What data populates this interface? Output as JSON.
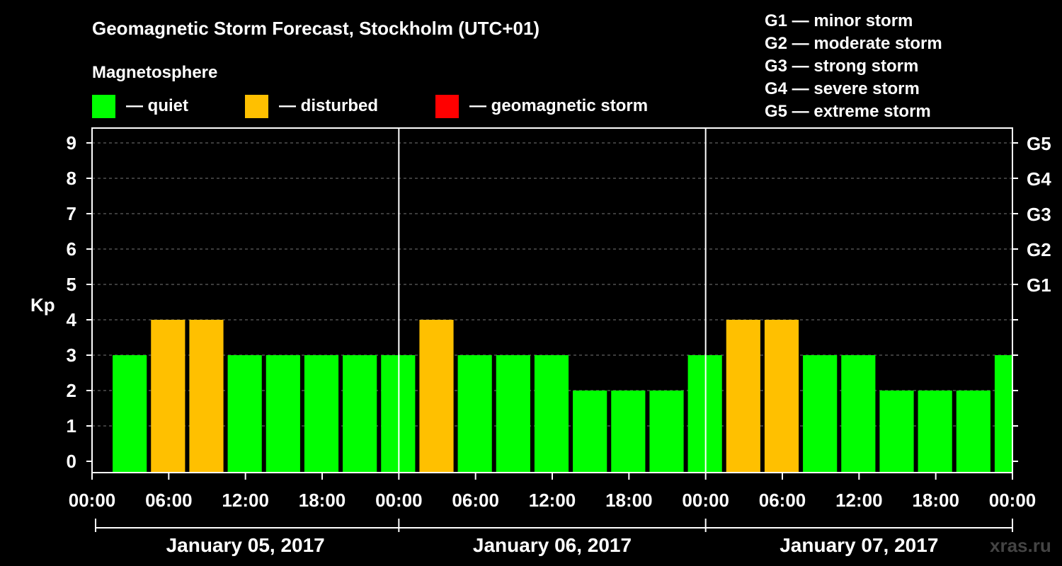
{
  "chart_data": {
    "type": "bar",
    "title": "Geomagnetic Storm Forecast, Stockholm (UTC+01)",
    "legend_title": "Magnetosphere",
    "legend": [
      {
        "label": "— quiet",
        "color": "#00ff00"
      },
      {
        "label": "— disturbed",
        "color": "#ffc000"
      },
      {
        "label": "— geomagnetic storm",
        "color": "#ff0000"
      }
    ],
    "storm_scale": [
      "G1 — minor storm",
      "G2 — moderate storm",
      "G3 — strong storm",
      "G4 — severe storm",
      "G5 — extreme storm"
    ],
    "ylabel": "Kp",
    "ylim": [
      0,
      9
    ],
    "yticks": [
      "0",
      "1",
      "2",
      "3",
      "4",
      "5",
      "6",
      "7",
      "8",
      "9"
    ],
    "right_ticks": [
      {
        "kp": 5,
        "label": "G1"
      },
      {
        "kp": 6,
        "label": "G2"
      },
      {
        "kp": 7,
        "label": "G3"
      },
      {
        "kp": 8,
        "label": "G4"
      },
      {
        "kp": 9,
        "label": "G5"
      }
    ],
    "grid": true,
    "xtick_labels": [
      "00:00",
      "06:00",
      "12:00",
      "18:00",
      "00:00",
      "06:00",
      "12:00",
      "18:00",
      "00:00",
      "06:00",
      "12:00",
      "18:00",
      "00:00"
    ],
    "days": [
      "January 05, 2017",
      "January 06, 2017",
      "January 07, 2017"
    ],
    "bar_hours_start": [
      1.5,
      4.5,
      7.5,
      10.5,
      13.5,
      16.5,
      19.5,
      22.5,
      25.5,
      28.5,
      31.5,
      34.5,
      37.5,
      40.5,
      43.5,
      46.5,
      49.5,
      52.5,
      55.5,
      58.5,
      61.5,
      64.5,
      67.5,
      70.5
    ],
    "values": [
      3,
      4,
      4,
      3,
      3,
      3,
      3,
      3,
      4,
      3,
      3,
      3,
      2,
      2,
      2,
      3,
      4,
      4,
      3,
      3,
      2,
      2,
      2,
      3
    ],
    "status": [
      "quiet",
      "disturbed",
      "disturbed",
      "quiet",
      "quiet",
      "quiet",
      "quiet",
      "quiet",
      "disturbed",
      "quiet",
      "quiet",
      "quiet",
      "quiet",
      "quiet",
      "quiet",
      "quiet",
      "disturbed",
      "disturbed",
      "quiet",
      "quiet",
      "quiet",
      "quiet",
      "quiet",
      "quiet"
    ],
    "status_colors": {
      "quiet": "#00ff00",
      "disturbed": "#ffc000",
      "storm": "#ff0000"
    }
  },
  "watermark": "xras.ru"
}
